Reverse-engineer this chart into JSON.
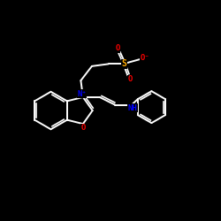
{
  "background_color": "#000000",
  "bond_color": "#ffffff",
  "atom_colors": {
    "N+": "#0000ff",
    "O": "#ff0000",
    "S": "#ffaa00",
    "O-": "#ff0000",
    "NH": "#0000ff"
  },
  "figsize": [
    2.5,
    2.5
  ],
  "dpi": 100
}
